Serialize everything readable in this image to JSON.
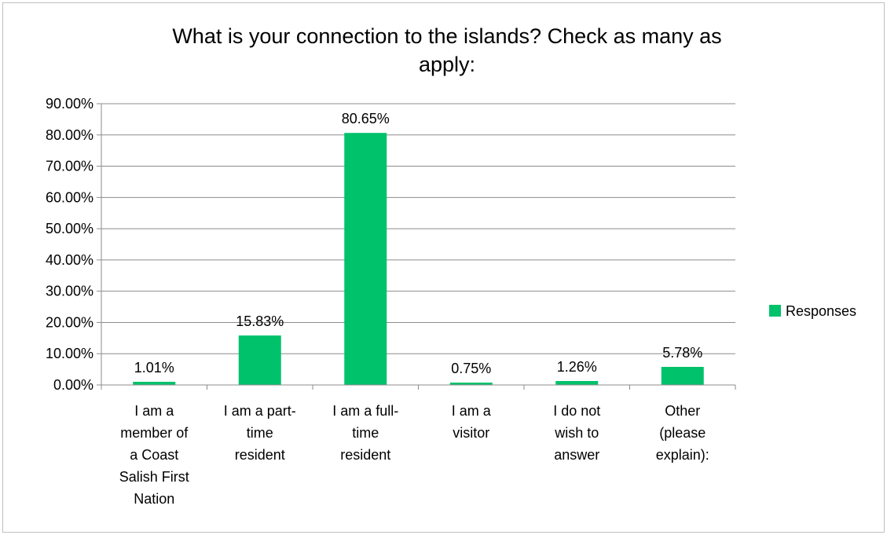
{
  "chart_data": {
    "type": "bar",
    "title": "What is your connection to the islands? Check as many as apply:",
    "title_lines": [
      "What is your connection to the islands? Check as many as",
      "apply:"
    ],
    "categories": [
      "I am a member of a Coast Salish First Nation",
      "I am a part-time resident",
      "I am a full-time resident",
      "I am a visitor",
      "I do not wish to answer",
      "Other (please explain):"
    ],
    "category_lines": [
      [
        "I am a",
        "member of",
        "a Coast",
        "Salish First",
        "Nation"
      ],
      [
        "I am a part-",
        "time",
        "resident"
      ],
      [
        "I am a full-",
        "time",
        "resident"
      ],
      [
        "I am a",
        "visitor"
      ],
      [
        "I do not",
        "wish to",
        "answer"
      ],
      [
        "Other",
        "(please",
        "explain):"
      ]
    ],
    "series": [
      {
        "name": "Responses",
        "values": [
          1.01,
          15.83,
          80.65,
          0.75,
          1.26,
          5.78
        ],
        "labels": [
          "1.01%",
          "15.83%",
          "80.65%",
          "0.75%",
          "1.26%",
          "5.78%"
        ]
      }
    ],
    "ylim": [
      0,
      90
    ],
    "yticks": [
      0,
      10,
      20,
      30,
      40,
      50,
      60,
      70,
      80,
      90
    ],
    "ytick_labels": [
      "0.00%",
      "10.00%",
      "20.00%",
      "30.00%",
      "40.00%",
      "50.00%",
      "60.00%",
      "70.00%",
      "80.00%",
      "90.00%"
    ],
    "grid": true,
    "legend_position": "right",
    "colors": {
      "bar": "#00c26b",
      "grid": "#8c8c8c",
      "axis": "#8c8c8c"
    }
  }
}
